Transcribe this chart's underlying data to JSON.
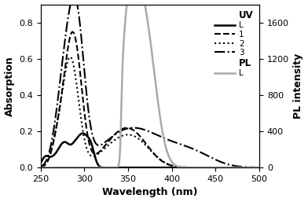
{
  "xlim": [
    250,
    500
  ],
  "ylim_left": [
    0,
    0.9
  ],
  "ylim_right": [
    0,
    1800
  ],
  "yticks_left": [
    0.0,
    0.2,
    0.4,
    0.6,
    0.8
  ],
  "yticks_right": [
    0,
    400,
    800,
    1200,
    1600
  ],
  "xlabel": "Wavelength (nm)",
  "ylabel_left": "Absorption",
  "ylabel_right": "PL intensity",
  "xticks": [
    250,
    300,
    350,
    400,
    450,
    500
  ],
  "background": "#ffffff",
  "series": [
    {
      "name": "UV_L",
      "legend": "L",
      "color": "#000000",
      "linestyle": "solid",
      "linewidth": 1.8
    },
    {
      "name": "UV_1",
      "legend": "1",
      "color": "#000000",
      "linestyle": "dashed",
      "linewidth": 1.5
    },
    {
      "name": "UV_2",
      "legend": "2",
      "color": "#000000",
      "linestyle": "dotted",
      "linewidth": 1.5
    },
    {
      "name": "UV_3",
      "legend": "3",
      "color": "#000000",
      "linestyle": "dashdot",
      "linewidth": 1.5
    },
    {
      "name": "PL_L",
      "legend": "L",
      "color": "#aaaaaa",
      "linestyle": "solid",
      "linewidth": 1.8
    }
  ]
}
